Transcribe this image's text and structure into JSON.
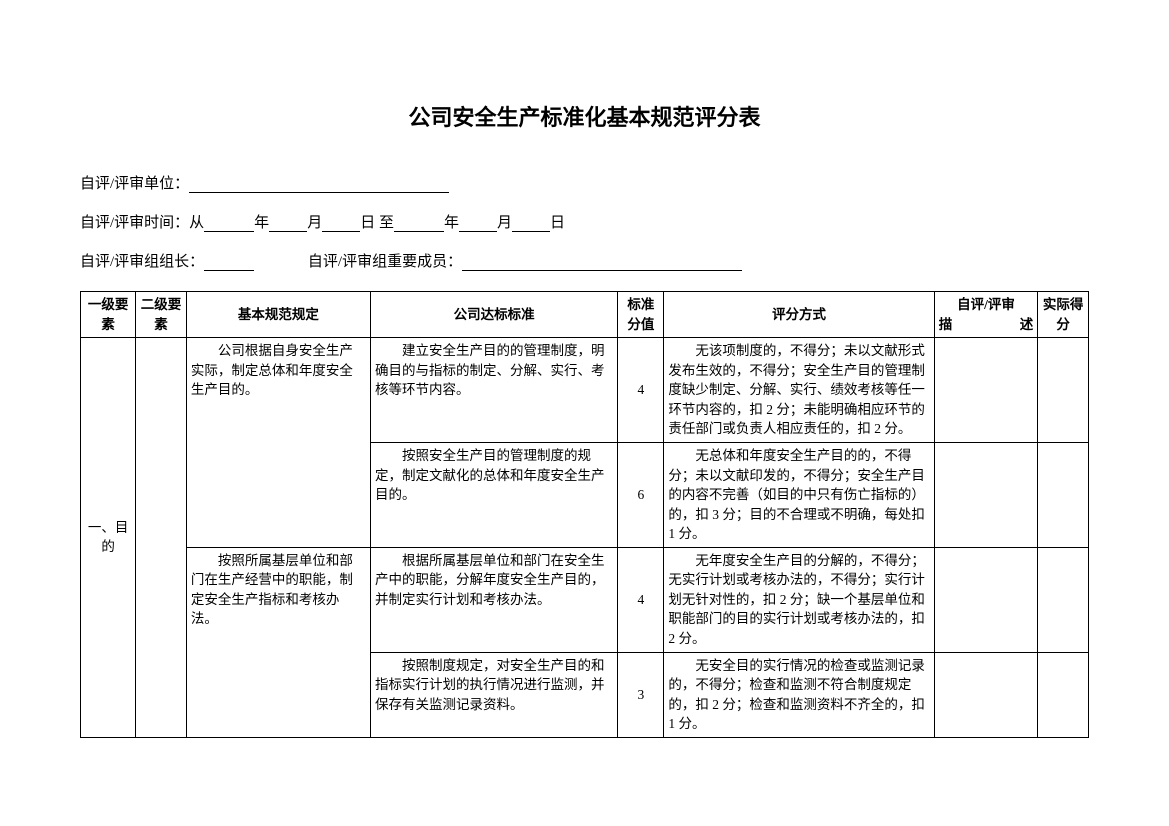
{
  "title": "公司安全生产标准化基本规范评分表",
  "form": {
    "unit_label": "自评/评审单位：",
    "time_label": "自评/评审时间：从",
    "year": "年",
    "month": "月",
    "day": "日",
    "to": "至",
    "leader_label": "自评/评审组组长：",
    "members_label": "自评/评审组重要成员："
  },
  "headers": {
    "level1": "一级要素",
    "level2": "二级要素",
    "basic": "基本规范规定",
    "company": "公司达标标准",
    "score": "标准分值",
    "method": "评分方式",
    "desc_l1": "自评/评审",
    "desc_l2": "描　　述",
    "actual": "实际得分"
  },
  "level1_label": "一、目的",
  "rows": [
    {
      "basic": "　　公司根据自身安全生产实际，制定总体和年度安全生产目的。",
      "standard": "　　建立安全生产目的的管理制度，明确目的与指标的制定、分解、实行、考核等环节内容。",
      "score": "4",
      "method": "　　无该项制度的，不得分；未以文献形式发布生效的，不得分；安全生产目的管理制度缺少制定、分解、实行、绩效考核等任一环节内容的，扣 2 分；未能明确相应环节的责任部门或负责人相应责任的，扣 2 分。"
    },
    {
      "basic": "",
      "standard": "　　按照安全生产目的管理制度的规定，制定文献化的总体和年度安全生产目的。",
      "score": "6",
      "method": "　　无总体和年度安全生产目的的，不得分；未以文献印发的，不得分；安全生产目的内容不完善（如目的中只有伤亡指标的）的，扣 3 分；目的不合理或不明确，每处扣 1 分。"
    },
    {
      "basic": "　　按照所属基层单位和部门在生产经营中的职能，制定安全生产指标和考核办法。",
      "standard": "　　根据所属基层单位和部门在安全生产中的职能，分解年度安全生产目的，并制定实行计划和考核办法。",
      "score": "4",
      "method": "　　无年度安全生产目的分解的，不得分；无实行计划或考核办法的，不得分；实行计划无针对性的，扣 2 分；缺一个基层单位和职能部门的目的实行计划或考核办法的，扣 2 分。"
    },
    {
      "basic": "",
      "standard": "　　按照制度规定，对安全生产目的和指标实行计划的执行情况进行监测，并保存有关监测记录资料。",
      "score": "3",
      "method": "　　无安全目的实行情况的检查或监测记录的，不得分；检查和监测不符合制度规定的，扣 2 分；检查和监测资料不齐全的，扣 1 分。"
    }
  ]
}
